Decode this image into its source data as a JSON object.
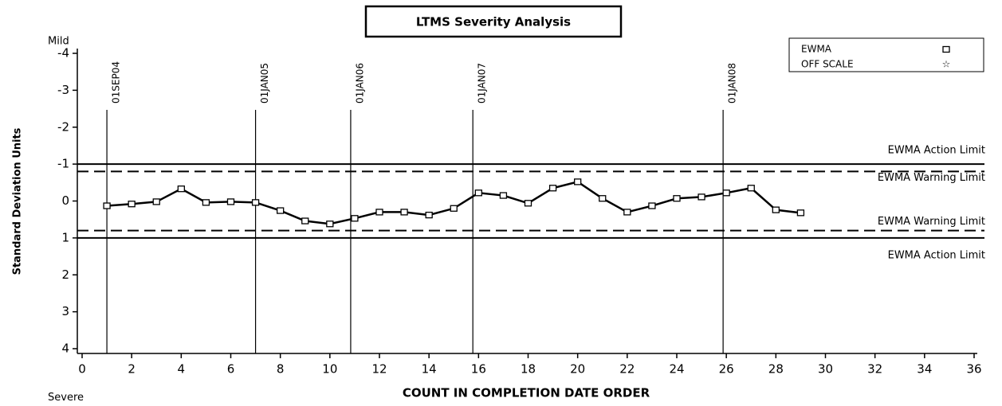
{
  "chart_data": {
    "type": "line",
    "title": "LTMS Severity Analysis",
    "x_label": "COUNT IN COMPLETION DATE ORDER",
    "y_label": "Standard Deviation Units",
    "y_top_note": "Mild",
    "y_bottom_note": "Severe",
    "xlim": [
      0,
      36
    ],
    "xticks": [
      0,
      2,
      4,
      6,
      8,
      10,
      12,
      14,
      16,
      18,
      20,
      22,
      24,
      26,
      28,
      30,
      32,
      34,
      36
    ],
    "ylim": [
      -4,
      4
    ],
    "yticks": [
      -4,
      -3,
      -2,
      -1,
      0,
      1,
      2,
      3,
      4
    ],
    "y_inverted": true,
    "series": [
      {
        "name": "EWMA",
        "marker": "square",
        "color": "#000000",
        "x": [
          1,
          2,
          3,
          4,
          5,
          6,
          7,
          8,
          9,
          10,
          11,
          12,
          13,
          14,
          15,
          16,
          17,
          18,
          19,
          20,
          21,
          22,
          23,
          24,
          25,
          26,
          27,
          28,
          29
        ],
        "values": [
          0.13,
          0.08,
          0.02,
          -0.33,
          0.04,
          0.02,
          0.04,
          0.26,
          0.54,
          0.62,
          0.47,
          0.3,
          0.3,
          0.38,
          0.2,
          -0.22,
          -0.15,
          0.06,
          -0.35,
          -0.52,
          -0.07,
          0.3,
          0.13,
          -0.07,
          -0.11,
          -0.22,
          -0.35,
          0.24,
          0.32
        ]
      },
      {
        "name": "OFF SCALE",
        "marker": "star",
        "color": "#000000",
        "x": [],
        "values": []
      }
    ],
    "hlines": [
      {
        "value": -1,
        "label": "EWMA Action Limit",
        "style": "solid"
      },
      {
        "value": -0.8,
        "label": "EWMA Warning Limit",
        "style": "dashed"
      },
      {
        "value": 0.8,
        "label": "EWMA Warning Limit",
        "style": "dashed"
      },
      {
        "value": 1,
        "label": "EWMA Action Limit",
        "style": "solid"
      }
    ],
    "vlines": [
      {
        "value": 1,
        "label": "01SEP04"
      },
      {
        "value": 7,
        "label": "01JAN05"
      },
      {
        "value": 10.84,
        "label": "01JAN06"
      },
      {
        "value": 15.77,
        "label": "01JAN07"
      },
      {
        "value": 25.87,
        "label": "01JAN08"
      }
    ],
    "legend_position": "top-right"
  }
}
